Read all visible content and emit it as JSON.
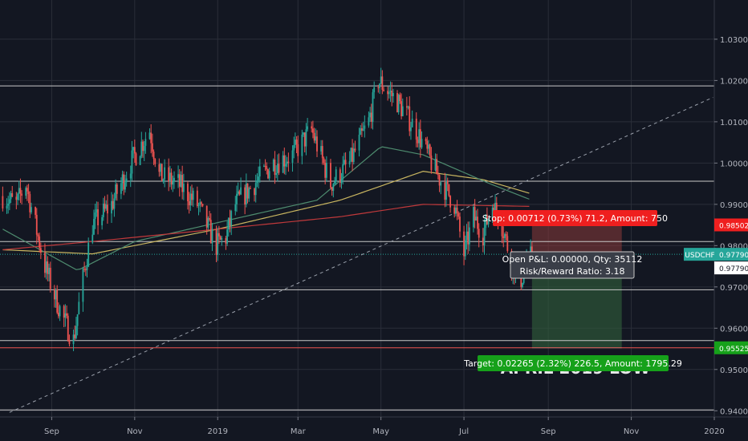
{
  "colors": {
    "background": "#131722",
    "grid": "#2a2e39",
    "up": "#26a69a",
    "down": "#ef5350",
    "ma_yellow": "#c8b560",
    "ma_green": "#4e8c6f",
    "ma_red": "#c0393b",
    "level_line": "#c8c8c8",
    "trendline": "#9aa0ab",
    "stop_zone": "#8a3a3a",
    "target_zone": "#2f5a3a",
    "stop_label": "#ef1f1f",
    "target_label": "#16a11a",
    "price_tag": "#26a69a"
  },
  "symbol_tag": "USDCHF",
  "price_tags": {
    "current": "0.97790",
    "stop": "0.98502",
    "entry": "0.97790",
    "target": "0.95525"
  },
  "labels": {
    "stop": "Stop: 0.00712 (0.73%) 71.2, Amount: 750",
    "target": "Target: 0.02265 (2.32%) 226.5, Amount: 1795.29",
    "open_pnl": "Open P&L: 0.00000, Qty: 35112",
    "risk_reward": "Risk/Reward Ratio: 3.18",
    "watermark": "APRIL 2019 LOW"
  },
  "chart_data": {
    "type": "candlestick",
    "symbol": "USDCHF",
    "x_ticks": [
      "Sep",
      "Nov",
      "2019",
      "Mar",
      "May",
      "Jul",
      "Sep",
      "Nov",
      "2020"
    ],
    "y_ticks": [
      "1.03000",
      "1.02000",
      "1.01000",
      "1.00000",
      "0.99000",
      "0.98000",
      "0.97000",
      "0.96000",
      "0.95000",
      "0.94000"
    ],
    "y_values": [
      1.03,
      1.02,
      1.01,
      1.0,
      0.99,
      0.98,
      0.97,
      0.96,
      0.95,
      0.94
    ],
    "ylim": [
      0.9385,
      1.0395
    ],
    "x_range": [
      "2018-07-25",
      "2020-01-01"
    ],
    "horizontal_levels": [
      1.0187,
      0.9956,
      0.981,
      0.9693,
      0.957,
      0.9402
    ],
    "trendline": {
      "from": [
        "2018-08-01",
        0.9396
      ],
      "to": [
        "2019-12-31",
        1.0159
      ]
    },
    "position": {
      "side": "short",
      "entry": 0.9779,
      "stop": 0.98502,
      "target": 0.95525,
      "start": "2019-08-20",
      "end": "2019-10-25"
    },
    "candles_anchor": [
      [
        "2018-07-27",
        0.992
      ],
      [
        "2018-08-06",
        0.99
      ],
      [
        "2018-08-13",
        0.995
      ],
      [
        "2018-08-20",
        0.985
      ],
      [
        "2018-08-27",
        0.975
      ],
      [
        "2018-09-03",
        0.968
      ],
      [
        "2018-09-10",
        0.962
      ],
      [
        "2018-09-17",
        0.957
      ],
      [
        "2018-09-24",
        0.972
      ],
      [
        "2018-10-01",
        0.985
      ],
      [
        "2018-10-15",
        0.99
      ],
      [
        "2018-10-29",
        1.0
      ],
      [
        "2018-11-12",
        1.008
      ],
      [
        "2018-11-19",
        0.997
      ],
      [
        "2018-12-03",
        0.995
      ],
      [
        "2018-12-17",
        0.99
      ],
      [
        "2018-12-31",
        0.98
      ],
      [
        "2019-01-07",
        0.982
      ],
      [
        "2019-01-14",
        0.99
      ],
      [
        "2019-01-28",
        0.995
      ],
      [
        "2019-02-11",
        1.0
      ],
      [
        "2019-02-25",
        1.002
      ],
      [
        "2019-03-11",
        1.008
      ],
      [
        "2019-03-25",
        0.995
      ],
      [
        "2019-04-08",
        1.0
      ],
      [
        "2019-04-22",
        1.01
      ],
      [
        "2019-04-29",
        1.02
      ],
      [
        "2019-05-13",
        1.015
      ],
      [
        "2019-05-27",
        1.008
      ],
      [
        "2019-06-10",
        0.998
      ],
      [
        "2019-06-24",
        0.99
      ],
      [
        "2019-07-01",
        0.978
      ],
      [
        "2019-07-08",
        0.987
      ],
      [
        "2019-07-15",
        0.983
      ],
      [
        "2019-07-22",
        0.99
      ],
      [
        "2019-07-29",
        0.985
      ],
      [
        "2019-08-05",
        0.976
      ],
      [
        "2019-08-12",
        0.972
      ],
      [
        "2019-08-20",
        0.9779
      ]
    ],
    "moving_averages": [
      {
        "color": "yellow",
        "values_anchor": [
          [
            "2018-07-27",
            0.979
          ],
          [
            "2018-10-01",
            0.978
          ],
          [
            "2019-01-01",
            0.984
          ],
          [
            "2019-04-01",
            0.991
          ],
          [
            "2019-06-01",
            0.998
          ],
          [
            "2019-07-15",
            0.996
          ],
          [
            "2019-08-20",
            0.9925
          ]
        ]
      },
      {
        "color": "green",
        "values_anchor": [
          [
            "2018-07-27",
            0.984
          ],
          [
            "2018-09-20",
            0.974
          ],
          [
            "2018-11-01",
            0.981
          ],
          [
            "2019-01-20",
            0.987
          ],
          [
            "2019-03-15",
            0.991
          ],
          [
            "2019-05-01",
            1.004
          ],
          [
            "2019-06-01",
            1.002
          ],
          [
            "2019-07-20",
            0.995
          ],
          [
            "2019-08-20",
            0.991
          ]
        ]
      },
      {
        "color": "red",
        "values_anchor": [
          [
            "2018-07-27",
            0.979
          ],
          [
            "2018-10-01",
            0.981
          ],
          [
            "2019-01-01",
            0.984
          ],
          [
            "2019-04-01",
            0.987
          ],
          [
            "2019-06-01",
            0.99
          ],
          [
            "2019-08-20",
            0.9895
          ]
        ]
      }
    ]
  }
}
